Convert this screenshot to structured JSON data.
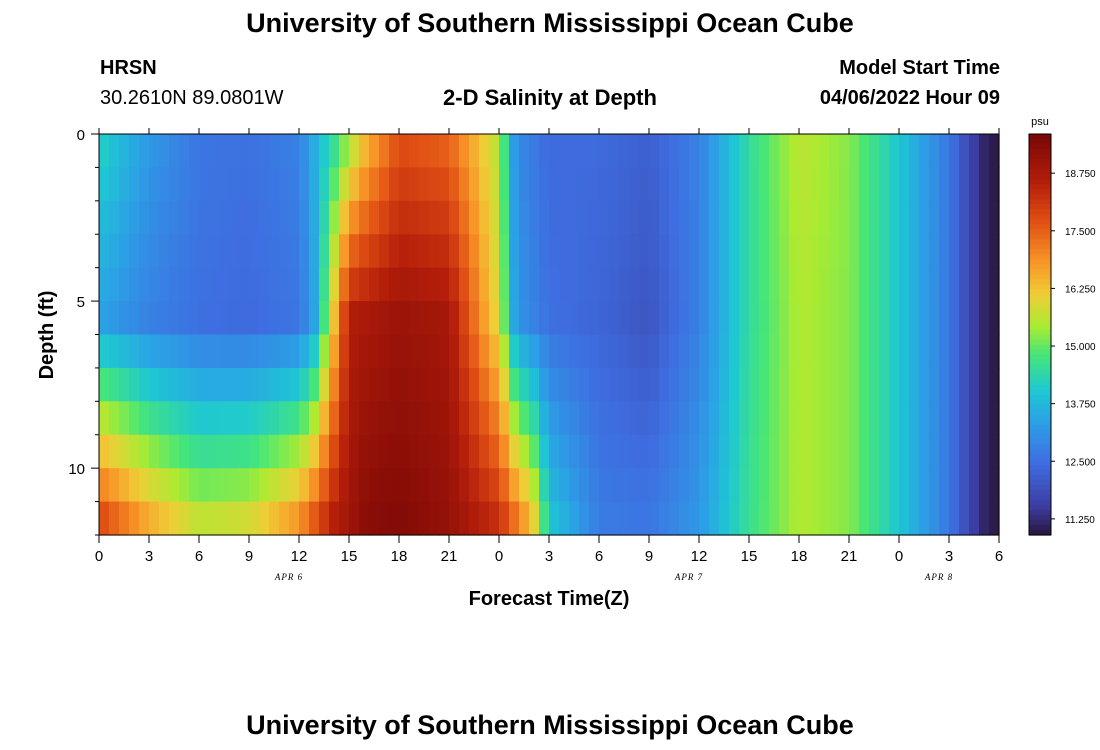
{
  "header": {
    "title": "University of Southern Mississippi Ocean Cube",
    "station": "HRSN",
    "coords": "30.2610N  89.0801W",
    "subtitle": "2-D Salinity at Depth",
    "model_start_label": "Model Start Time",
    "model_start_value": "04/06/2022 Hour 09"
  },
  "footer": {
    "title": "University of Southern Mississippi Ocean Cube"
  },
  "chart_data": {
    "type": "heatmap",
    "title": "2-D Salinity at Depth",
    "xlabel": "Forecast Time(Z)",
    "ylabel": "Depth (ft)",
    "x_range_hours": [
      0,
      54
    ],
    "y_range_ft": [
      0,
      12
    ],
    "x_ticks": [
      {
        "h": 0,
        "label": "0"
      },
      {
        "h": 3,
        "label": "3"
      },
      {
        "h": 6,
        "label": "6"
      },
      {
        "h": 9,
        "label": "9"
      },
      {
        "h": 12,
        "label": "12"
      },
      {
        "h": 15,
        "label": "15"
      },
      {
        "h": 18,
        "label": "18"
      },
      {
        "h": 21,
        "label": "21"
      },
      {
        "h": 24,
        "label": "0"
      },
      {
        "h": 27,
        "label": "3"
      },
      {
        "h": 30,
        "label": "6"
      },
      {
        "h": 33,
        "label": "9"
      },
      {
        "h": 36,
        "label": "12"
      },
      {
        "h": 39,
        "label": "15"
      },
      {
        "h": 42,
        "label": "18"
      },
      {
        "h": 45,
        "label": "21"
      },
      {
        "h": 48,
        "label": "0"
      },
      {
        "h": 51,
        "label": "3"
      },
      {
        "h": 54,
        "label": "6"
      }
    ],
    "date_labels": [
      {
        "h": 12,
        "label": "APR 6"
      },
      {
        "h": 36,
        "label": "APR 7"
      },
      {
        "h": 51,
        "label": "APR 8"
      }
    ],
    "y_ticks": [
      {
        "ft": 0,
        "label": "0"
      },
      {
        "ft": 5,
        "label": "5"
      },
      {
        "ft": 10,
        "label": "10"
      }
    ],
    "colorbar": {
      "unit": "psu",
      "min": 10.9,
      "max": 19.6,
      "ticks": [
        "11.250",
        "12.500",
        "13.750",
        "15.000",
        "16.250",
        "17.500",
        "18.750"
      ],
      "tick_values": [
        11.25,
        12.5,
        13.75,
        15.0,
        16.25,
        17.5,
        18.75
      ]
    },
    "depth_rows_ft": [
      0.5,
      1.5,
      2.5,
      3.5,
      4.5,
      5.5,
      6.5,
      7.5,
      8.5,
      9.5,
      10.5,
      11.5
    ],
    "series": [
      {
        "name": "surface ~0.5 ft",
        "hours": [
          0,
          3,
          6,
          9,
          12,
          14,
          16,
          18,
          21,
          24,
          25,
          27,
          30,
          33,
          36,
          39,
          42,
          45,
          48,
          51,
          53,
          54
        ],
        "values": [
          14.2,
          13.2,
          12.6,
          12.5,
          12.8,
          14.5,
          16.5,
          17.8,
          17.5,
          15.5,
          13.0,
          12.4,
          12.4,
          12.2,
          12.8,
          14.5,
          15.6,
          15.2,
          14.0,
          12.6,
          11.2,
          10.9
        ]
      },
      {
        "name": "mid ~5.5 ft",
        "hours": [
          0,
          3,
          6,
          9,
          12,
          13,
          15,
          18,
          21,
          24,
          25,
          27,
          30,
          33,
          36,
          39,
          42,
          45,
          48,
          51,
          53,
          54
        ],
        "values": [
          13.4,
          12.8,
          12.5,
          12.4,
          12.6,
          13.5,
          18.6,
          19.0,
          18.8,
          15.8,
          13.2,
          12.5,
          12.3,
          12.0,
          12.8,
          14.5,
          15.5,
          15.2,
          14.0,
          12.6,
          11.2,
          10.9
        ]
      },
      {
        "name": "bottom ~11.5 ft",
        "hours": [
          0,
          3,
          6,
          9,
          12,
          14,
          16,
          18,
          21,
          24,
          26,
          27,
          30,
          33,
          36,
          39,
          42,
          45,
          48,
          51,
          53,
          54
        ],
        "values": [
          17.8,
          16.5,
          15.6,
          15.8,
          16.8,
          18.5,
          19.3,
          19.4,
          19.1,
          18.2,
          16.2,
          14.0,
          12.7,
          12.6,
          13.2,
          14.6,
          15.5,
          15.2,
          14.0,
          12.6,
          11.2,
          10.9
        ]
      }
    ]
  }
}
